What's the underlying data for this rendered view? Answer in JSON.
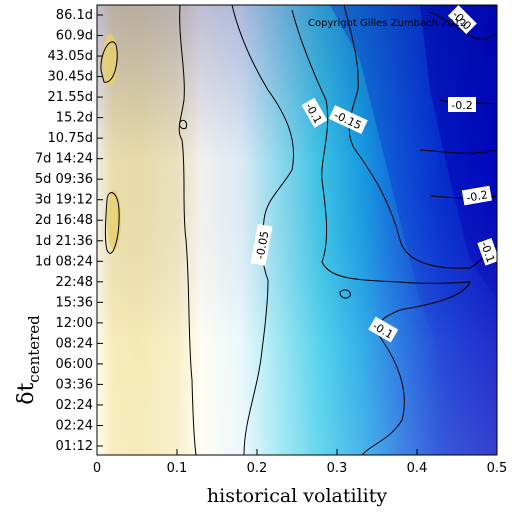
{
  "chart_data": {
    "type": "heatmap",
    "title": "",
    "copyright": "Copyright Gilles Zumbach 2012",
    "xlabel": "historical volatility",
    "ylabel": {
      "main": "δt",
      "subscript": "centered"
    },
    "xlim": [
      0,
      0.5
    ],
    "x_ticks": [
      "0",
      "0.1",
      "0.2",
      "0.3",
      "0.4",
      "0.5"
    ],
    "y_ticks": [
      "86.1d",
      "60.9d",
      "43.05d",
      "30.45d",
      "21.55d",
      "15.2d",
      "10.75d",
      "7d 14:24",
      "5d 09:36",
      "3d 19:12",
      "2d 16:48",
      "1d 21:36",
      "1d 08:24",
      "22:48",
      "15:36",
      "12:00",
      "08:24",
      "06:00",
      "03:36",
      "02:24",
      "02:24",
      "01:12"
    ],
    "colorscale": [
      {
        "value": 0.03,
        "color": "#f2e29a"
      },
      {
        "value": 0.0,
        "color": "#fffbe6"
      },
      {
        "value": -0.04,
        "color": "#e6f6fc"
      },
      {
        "value": -0.08,
        "color": "#4fd0ea"
      },
      {
        "value": -0.12,
        "color": "#1c8ee6"
      },
      {
        "value": -0.16,
        "color": "#0d40d8"
      },
      {
        "value": -0.22,
        "color": "#0000b4"
      }
    ],
    "contour_labels": [
      "-0.05",
      "-0.1",
      "-0.15",
      "-0.1",
      "-0.2",
      "-0.2",
      "-0.1",
      "-0.0"
    ]
  }
}
